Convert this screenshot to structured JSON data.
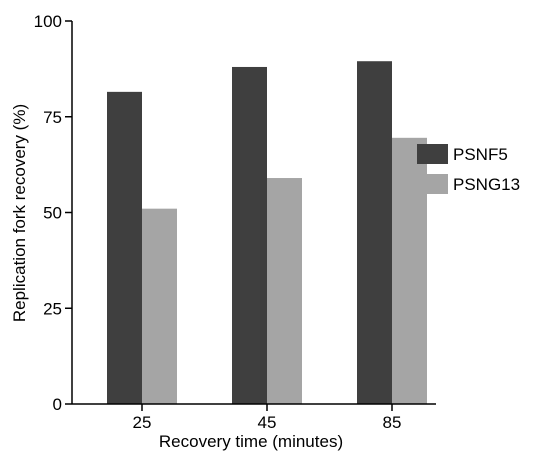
{
  "chart_data": {
    "type": "bar",
    "title": "",
    "xlabel": "Recovery time (minutes)",
    "ylabel": "Replication fork recovery (%)",
    "categories": [
      "25",
      "45",
      "85"
    ],
    "ylim": [
      0,
      100
    ],
    "yticks": [
      0,
      25,
      50,
      75,
      100
    ],
    "grid": false,
    "legend_position": "right",
    "series": [
      {
        "name": "PSNF5",
        "color": "#3f3f3f",
        "values": [
          81.5,
          88,
          89.5
        ]
      },
      {
        "name": "PSNG13",
        "color": "#a5a5a5",
        "values": [
          51,
          59,
          69.5
        ]
      }
    ]
  }
}
